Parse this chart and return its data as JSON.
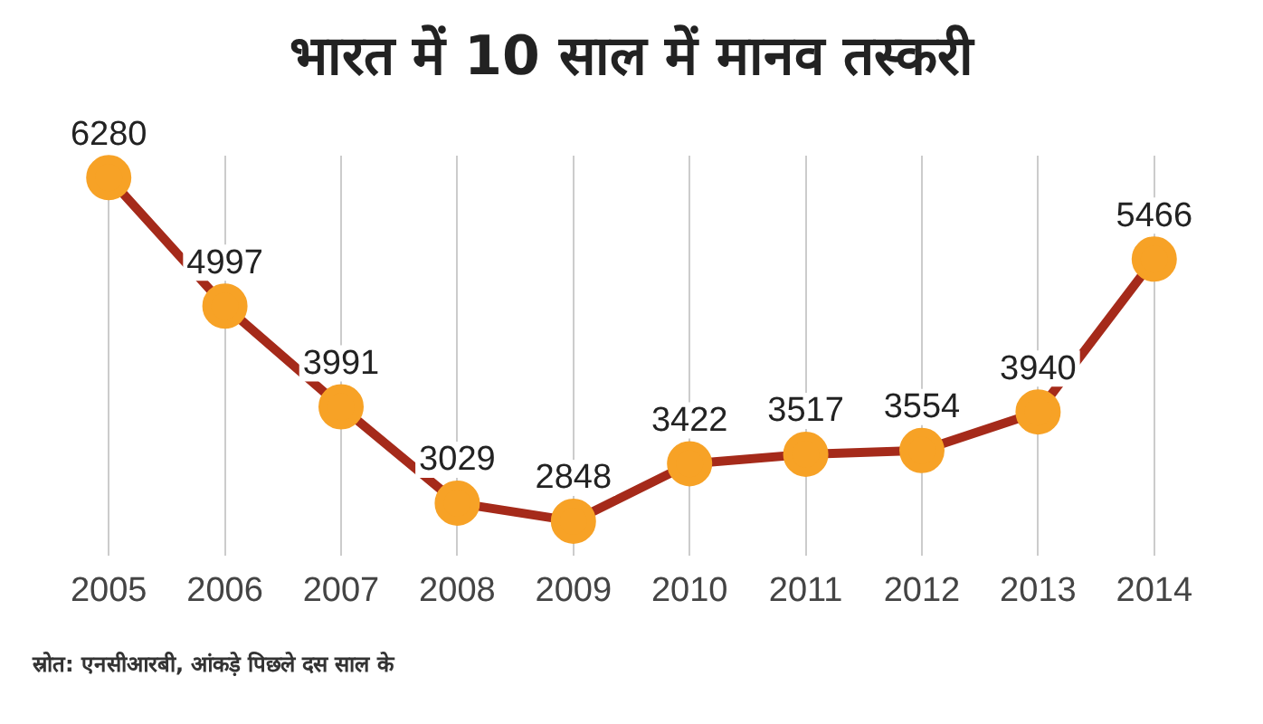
{
  "chart_data": {
    "type": "line",
    "title": "भारत में 10 साल में मानव तस्करी",
    "categories": [
      "2005",
      "2006",
      "2007",
      "2008",
      "2009",
      "2010",
      "2011",
      "2012",
      "2013",
      "2014"
    ],
    "series": [
      {
        "color": "#a52a1a",
        "values": [
          6280,
          4997,
          3991,
          3029,
          2848,
          3422,
          3517,
          3554,
          3940,
          5466
        ]
      }
    ],
    "marker": "circle",
    "data_labels": true,
    "grid": "x",
    "tick_labels": "x",
    "legend": false,
    "annotations": [
      "स्रोत: एनसीआरबी, आंकड़े पिछले दस साल के"
    ]
  }
}
